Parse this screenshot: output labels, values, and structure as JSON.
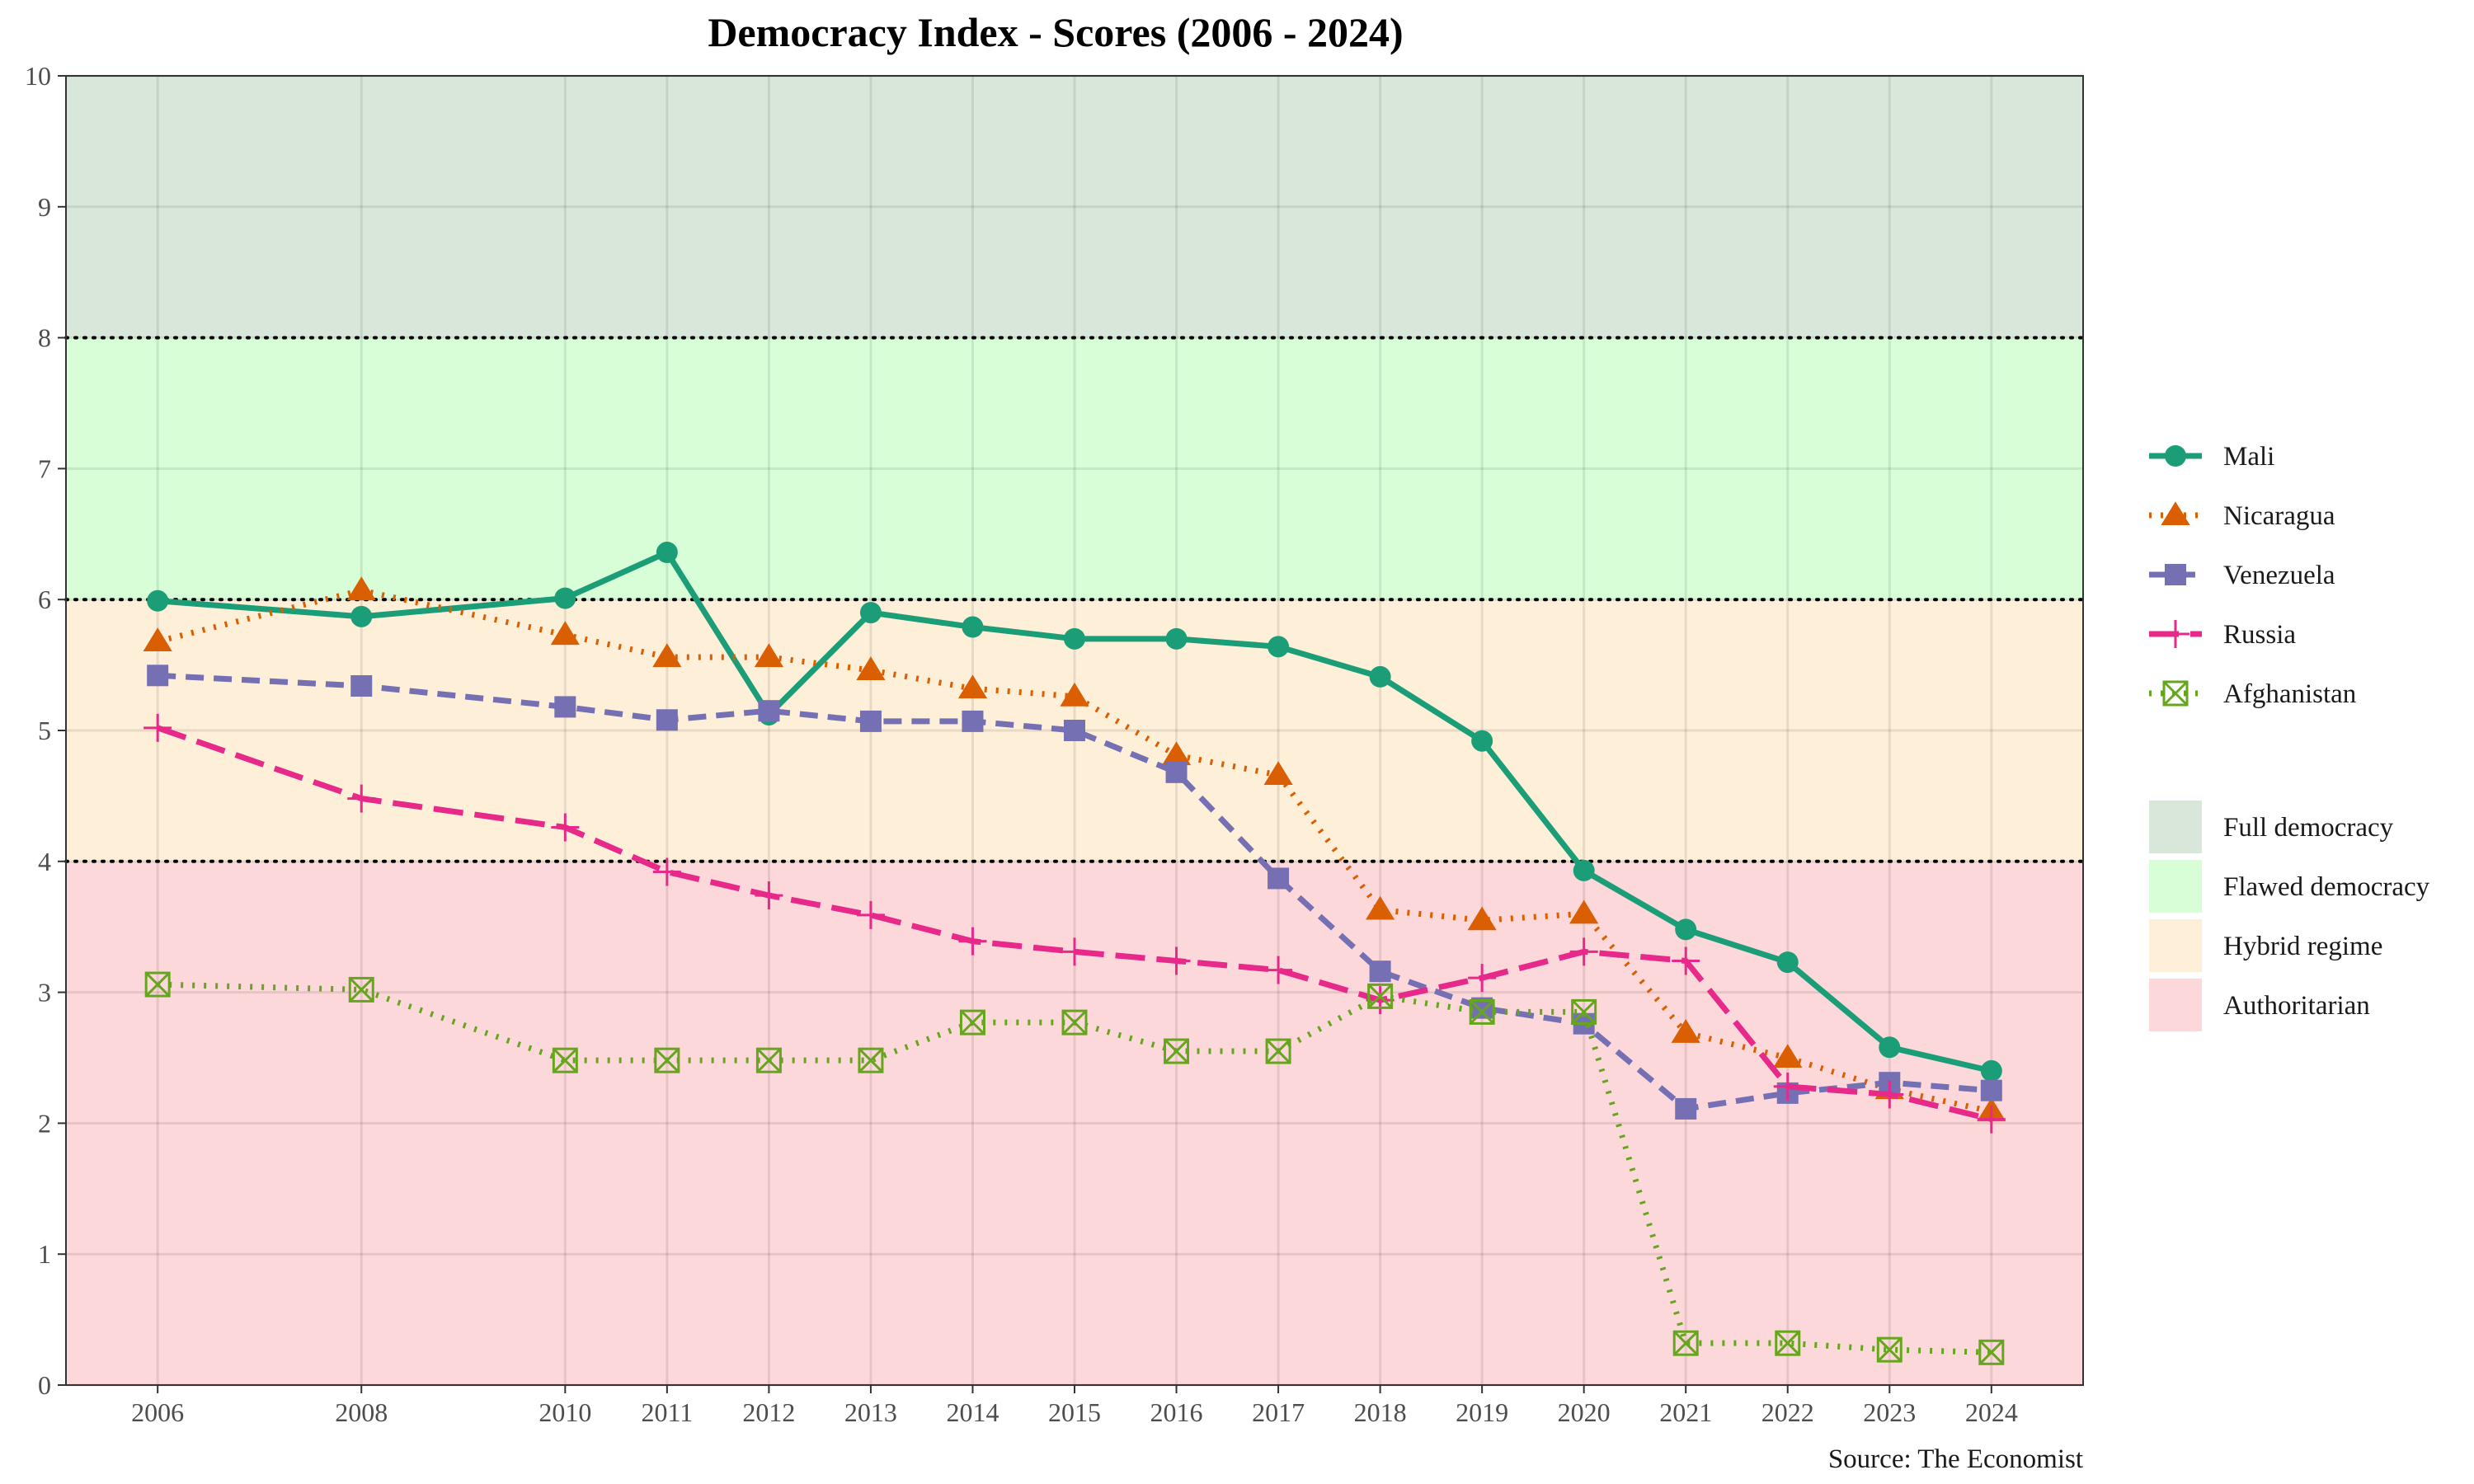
{
  "chart_data": {
    "type": "line",
    "title": "Democracy Index - Scores (2006 - 2024)",
    "caption": "Source: The Economist",
    "xlabel": "",
    "ylabel": "",
    "x": [
      2006,
      2008,
      2010,
      2011,
      2012,
      2013,
      2014,
      2015,
      2016,
      2017,
      2018,
      2019,
      2020,
      2021,
      2022,
      2023,
      2024
    ],
    "xlim": [
      2005.1,
      2024.9
    ],
    "ylim": [
      0,
      10
    ],
    "y_ticks": [
      "0",
      "1",
      "2",
      "3",
      "4",
      "5",
      "6",
      "7",
      "8",
      "9",
      "10"
    ],
    "x_ticks": [
      "2006",
      "2008",
      "2010",
      "2011",
      "2012",
      "2013",
      "2014",
      "2015",
      "2016",
      "2017",
      "2018",
      "2019",
      "2020",
      "2021",
      "2022",
      "2023",
      "2024"
    ],
    "grid": true,
    "legend_position": "right",
    "thresholds": [
      4,
      6,
      8
    ],
    "regimes": [
      {
        "name": "Full democracy",
        "from": 8,
        "to": 10,
        "color": "#d9e7da"
      },
      {
        "name": "Flawed democracy",
        "from": 6,
        "to": 8,
        "color": "#d8fed8"
      },
      {
        "name": "Hybrid regime",
        "from": 4,
        "to": 6,
        "color": "#feefd8"
      },
      {
        "name": "Authoritarian",
        "from": 0,
        "to": 4,
        "color": "#fdd8da"
      }
    ],
    "series": [
      {
        "name": "Mali",
        "color": "#1b9e77",
        "dash": "solid",
        "marker": "circle",
        "values": [
          5.99,
          5.87,
          6.01,
          6.36,
          5.12,
          5.9,
          5.79,
          5.7,
          5.7,
          5.64,
          5.41,
          4.92,
          3.93,
          3.48,
          3.23,
          2.58,
          2.4
        ]
      },
      {
        "name": "Nicaragua",
        "color": "#d95f02",
        "dash": "dotted",
        "marker": "triangle",
        "values": [
          5.68,
          6.07,
          5.73,
          5.56,
          5.56,
          5.46,
          5.32,
          5.26,
          4.81,
          4.66,
          3.63,
          3.55,
          3.6,
          2.69,
          2.5,
          2.26,
          2.09
        ]
      },
      {
        "name": "Venezuela",
        "color": "#7570b3",
        "dash": "dashed",
        "marker": "square",
        "values": [
          5.42,
          5.34,
          5.18,
          5.08,
          5.15,
          5.07,
          5.07,
          5.0,
          4.68,
          3.87,
          3.16,
          2.88,
          2.76,
          2.11,
          2.23,
          2.31,
          2.25
        ]
      },
      {
        "name": "Russia",
        "color": "#e7298a",
        "dash": "longdash",
        "marker": "plus",
        "values": [
          5.02,
          4.48,
          4.26,
          3.92,
          3.74,
          3.59,
          3.39,
          3.31,
          3.24,
          3.17,
          2.94,
          3.11,
          3.31,
          3.24,
          2.28,
          2.22,
          2.03
        ]
      },
      {
        "name": "Afghanistan",
        "color": "#66a61e",
        "dash": "dotted",
        "marker": "boxcross",
        "values": [
          3.06,
          3.02,
          2.48,
          2.48,
          2.48,
          2.48,
          2.77,
          2.77,
          2.55,
          2.55,
          2.97,
          2.85,
          2.85,
          0.32,
          0.32,
          0.27,
          0.25
        ]
      }
    ]
  }
}
